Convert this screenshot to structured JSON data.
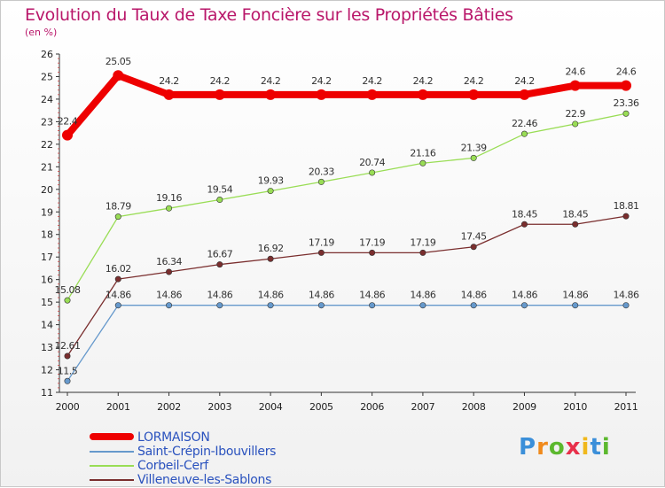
{
  "chart_data": {
    "type": "line",
    "title": "Evolution du Taux de Taxe Foncière sur les Propriétés Bâties",
    "unit_label": "(en %)",
    "x": [
      "2000",
      "2001",
      "2002",
      "2003",
      "2004",
      "2005",
      "2006",
      "2007",
      "2008",
      "2009",
      "2010",
      "2011"
    ],
    "ylim": [
      11,
      26
    ],
    "yticks": [
      11,
      12,
      13,
      14,
      15,
      16,
      17,
      18,
      19,
      20,
      21,
      22,
      23,
      24,
      25,
      26
    ],
    "grid": false,
    "series": [
      {
        "name": "LORMAISON",
        "color": "#ee0000",
        "values": [
          22.4,
          25.05,
          24.2,
          24.2,
          24.2,
          24.2,
          24.2,
          24.2,
          24.2,
          24.2,
          24.6,
          24.6
        ],
        "labels": [
          "22.4",
          "25.05",
          "24.2",
          "24.2",
          "24.2",
          "24.2",
          "24.2",
          "24.2",
          "24.2",
          "24.2",
          "24.6",
          "24.6"
        ]
      },
      {
        "name": "Saint-Crépin-Ibouvillers",
        "color": "#6699cc",
        "values": [
          11.5,
          14.86,
          14.86,
          14.86,
          14.86,
          14.86,
          14.86,
          14.86,
          14.86,
          14.86,
          14.86,
          14.86
        ],
        "labels": [
          "11.5",
          "14.86",
          "14.86",
          "14.86",
          "14.86",
          "14.86",
          "14.86",
          "14.86",
          "14.86",
          "14.86",
          "14.86",
          "14.86"
        ]
      },
      {
        "name": "Corbeil-Cerf",
        "color": "#99dd55",
        "values": [
          15.08,
          18.79,
          19.16,
          19.54,
          19.93,
          20.33,
          20.74,
          21.16,
          21.39,
          22.46,
          22.9,
          23.36
        ],
        "labels": [
          "15.08",
          "18.79",
          "19.16",
          "19.54",
          "19.93",
          "20.33",
          "20.74",
          "21.16",
          "21.39",
          "22.46",
          "22.9",
          "23.36"
        ]
      },
      {
        "name": "Villeneuve-les-Sablons",
        "color": "#7a2e2e",
        "values": [
          12.61,
          16.02,
          16.34,
          16.67,
          16.92,
          17.19,
          17.19,
          17.19,
          17.45,
          18.45,
          18.45,
          18.81
        ],
        "labels": [
          "12.61",
          "16.02",
          "16.34",
          "16.67",
          "16.92",
          "17.19",
          "17.19",
          "17.19",
          "17.45",
          "18.45",
          "18.45",
          "18.81"
        ]
      }
    ]
  },
  "legend": {
    "items": [
      "LORMAISON",
      "Saint-Crépin-Ibouvillers",
      "Corbeil-Cerf",
      "Villeneuve-les-Sablons"
    ]
  },
  "brand": {
    "text": "Proxiti",
    "letters": [
      {
        "ch": "P",
        "color": "#3b8fd9"
      },
      {
        "ch": "r",
        "color": "#f08a1c"
      },
      {
        "ch": "o",
        "color": "#5cb82e"
      },
      {
        "ch": "x",
        "color": "#e8304a"
      },
      {
        "ch": "i",
        "color": "#f0b81c"
      },
      {
        "ch": "t",
        "color": "#3b8fd9"
      },
      {
        "ch": "i",
        "color": "#5cb82e"
      }
    ]
  }
}
